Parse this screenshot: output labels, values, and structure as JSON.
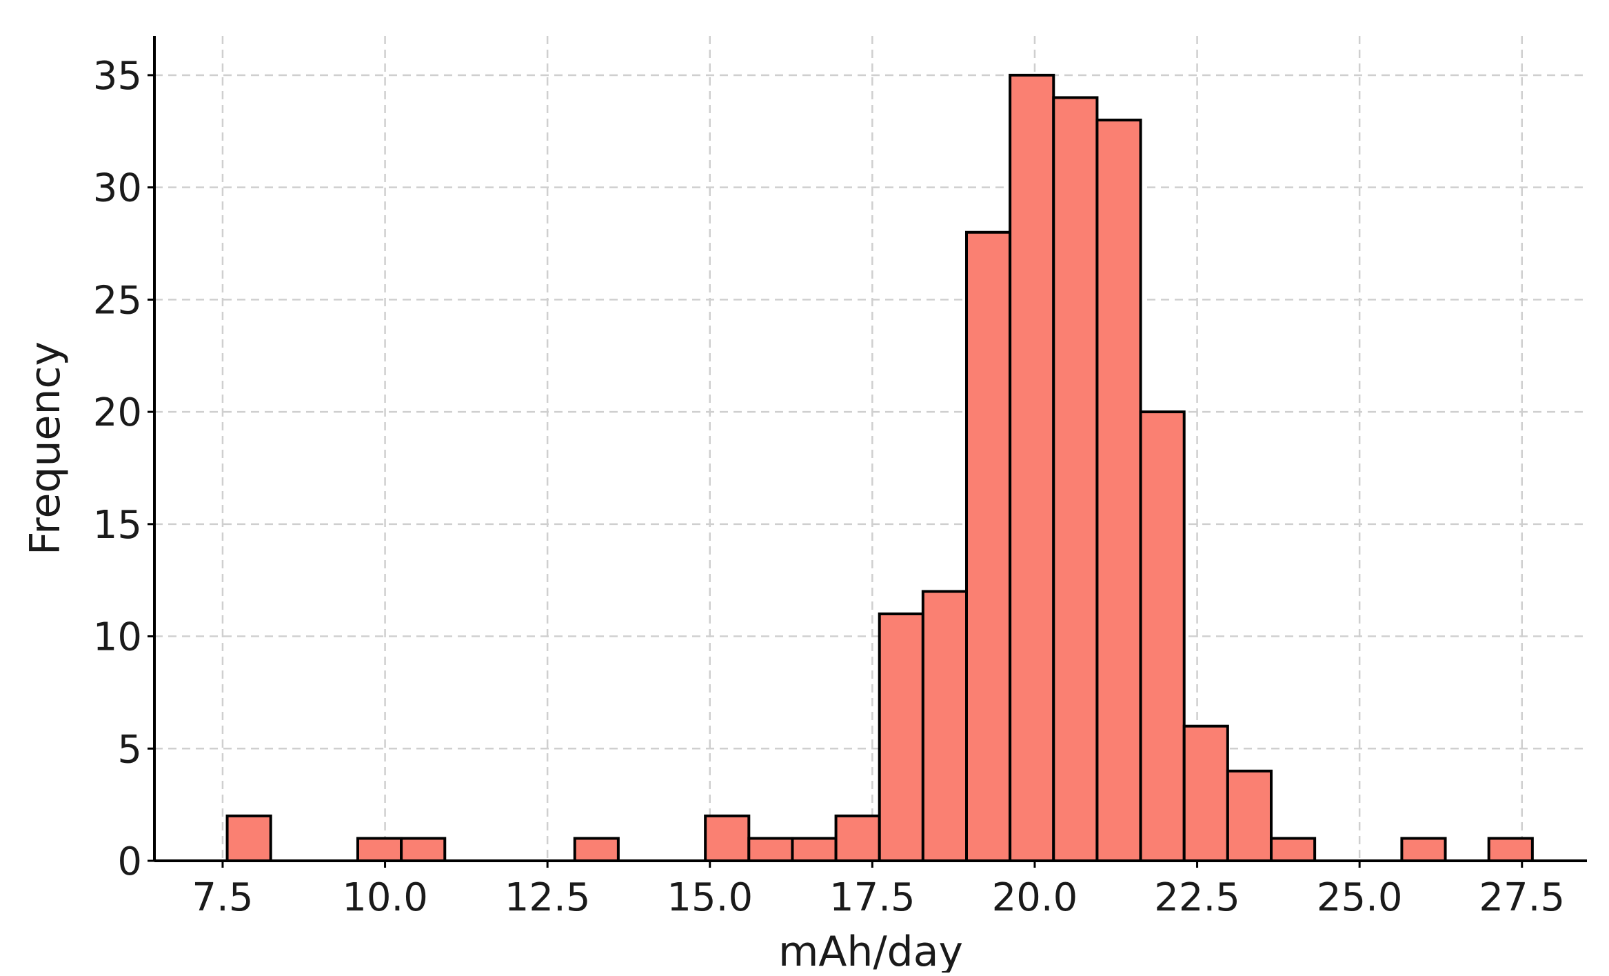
{
  "chart_data": {
    "type": "bar",
    "subtype": "histogram",
    "title": "",
    "xlabel": "mAh/day",
    "ylabel": "Frequency",
    "xlim": [
      6.45,
      28.5
    ],
    "ylim": [
      0,
      36.75
    ],
    "x_ticks": [
      7.5,
      10.0,
      12.5,
      15.0,
      17.5,
      20.0,
      22.5,
      25.0,
      27.5
    ],
    "x_tick_labels": [
      "7.5",
      "10.0",
      "12.5",
      "15.0",
      "17.5",
      "20.0",
      "22.5",
      "25.0",
      "27.5"
    ],
    "y_ticks": [
      0,
      5,
      10,
      15,
      20,
      25,
      30,
      35
    ],
    "y_tick_labels": [
      "0",
      "5",
      "10",
      "15",
      "20",
      "25",
      "30",
      "35"
    ],
    "grid": true,
    "bar_color": "#fa8072",
    "edge_color": "#000000",
    "bins": [
      {
        "x0": 7.57,
        "x1": 8.24,
        "count": 2
      },
      {
        "x0": 9.58,
        "x1": 10.25,
        "count": 1
      },
      {
        "x0": 10.25,
        "x1": 10.92,
        "count": 1
      },
      {
        "x0": 12.92,
        "x1": 13.59,
        "count": 1
      },
      {
        "x0": 14.93,
        "x1": 15.6,
        "count": 2
      },
      {
        "x0": 15.6,
        "x1": 16.27,
        "count": 1
      },
      {
        "x0": 16.27,
        "x1": 16.94,
        "count": 1
      },
      {
        "x0": 16.94,
        "x1": 17.61,
        "count": 2
      },
      {
        "x0": 17.61,
        "x1": 18.28,
        "count": 11
      },
      {
        "x0": 18.28,
        "x1": 18.95,
        "count": 12
      },
      {
        "x0": 18.95,
        "x1": 19.62,
        "count": 28
      },
      {
        "x0": 19.62,
        "x1": 20.29,
        "count": 35
      },
      {
        "x0": 20.29,
        "x1": 20.96,
        "count": 34
      },
      {
        "x0": 20.96,
        "x1": 21.63,
        "count": 33
      },
      {
        "x0": 21.63,
        "x1": 22.3,
        "count": 20
      },
      {
        "x0": 22.3,
        "x1": 22.97,
        "count": 6
      },
      {
        "x0": 22.97,
        "x1": 23.64,
        "count": 4
      },
      {
        "x0": 23.64,
        "x1": 24.31,
        "count": 1
      },
      {
        "x0": 25.65,
        "x1": 26.32,
        "count": 1
      },
      {
        "x0": 26.99,
        "x1": 27.66,
        "count": 1
      }
    ]
  }
}
